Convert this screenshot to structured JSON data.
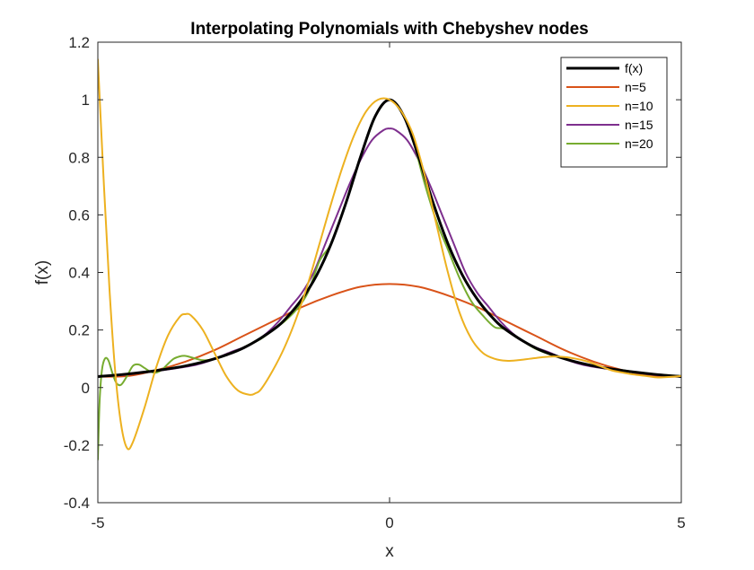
{
  "chart_data": {
    "type": "line",
    "title": "Interpolating Polynomials with Chebyshev nodes",
    "xlabel": "x",
    "ylabel": "f(x)",
    "xlim": [
      -5,
      5
    ],
    "ylim": [
      -0.4,
      1.2
    ],
    "xticks": [
      -5,
      0,
      5
    ],
    "xtick_labels": [
      "-5",
      "0",
      "5"
    ],
    "yticks": [
      -0.4,
      -0.2,
      0,
      0.2,
      0.4,
      0.6,
      0.8,
      1,
      1.2
    ],
    "ytick_labels": [
      "-0.4",
      "-0.2",
      "0",
      "0.2",
      "0.4",
      "0.6",
      "0.8",
      "1",
      "1.2"
    ],
    "grid": false,
    "legend_position": "top-right",
    "series": [
      {
        "name": "f(x)",
        "color": "#000000",
        "line_width": 3,
        "x": [
          -5,
          -4.5,
          -4,
          -3.5,
          -3,
          -2.5,
          -2,
          -1.75,
          -1.5,
          -1.25,
          -1,
          -0.75,
          -0.5,
          -0.25,
          0,
          0.25,
          0.5,
          0.75,
          1,
          1.25,
          1.5,
          1.75,
          2,
          2.5,
          3,
          3.5,
          4,
          4.5,
          5
        ],
        "y": [
          0.038,
          0.047,
          0.059,
          0.075,
          0.1,
          0.138,
          0.2,
          0.246,
          0.308,
          0.39,
          0.5,
          0.64,
          0.8,
          0.941,
          1,
          0.941,
          0.8,
          0.64,
          0.5,
          0.39,
          0.308,
          0.246,
          0.2,
          0.138,
          0.1,
          0.075,
          0.059,
          0.047,
          0.038
        ]
      },
      {
        "name": "n=5",
        "color": "#D95319",
        "line_width": 2,
        "x": [
          -5,
          -4.5,
          -4,
          -3.5,
          -3,
          -2.5,
          -2,
          -1.5,
          -1,
          -0.5,
          0,
          0.5,
          1,
          1.5,
          2,
          2.5,
          3,
          3.5,
          4,
          4.5,
          5
        ],
        "y": [
          0.038,
          0.04,
          0.06,
          0.09,
          0.13,
          0.18,
          0.23,
          0.28,
          0.32,
          0.35,
          0.36,
          0.35,
          0.32,
          0.28,
          0.23,
          0.18,
          0.13,
          0.09,
          0.06,
          0.04,
          0.038
        ]
      },
      {
        "name": "n=10",
        "color": "#EDB120",
        "line_width": 2,
        "x": [
          -5,
          -4.9,
          -4.8,
          -4.7,
          -4.6,
          -4.5,
          -4.4,
          -4.2,
          -4.0,
          -3.8,
          -3.6,
          -3.5,
          -3.4,
          -3.2,
          -3.0,
          -2.8,
          -2.6,
          -2.4,
          -2.3,
          -2.2,
          -2.0,
          -1.8,
          -1.6,
          -1.4,
          -1.2,
          -1.0,
          -0.8,
          -0.6,
          -0.4,
          -0.2,
          0,
          0.2,
          0.4,
          0.6,
          0.8,
          1.0,
          1.2,
          1.4,
          1.6,
          1.8,
          2.0,
          2.2,
          2.4,
          2.6,
          2.8,
          3.0,
          3.2,
          3.4,
          3.6,
          3.8,
          4.0,
          4.2,
          4.4,
          4.6,
          4.8,
          5
        ],
        "y": [
          1.14,
          0.72,
          0.34,
          0.05,
          -0.13,
          -0.21,
          -0.19,
          -0.07,
          0.07,
          0.18,
          0.245,
          0.255,
          0.25,
          0.2,
          0.12,
          0.04,
          -0.01,
          -0.025,
          -0.02,
          -0.005,
          0.06,
          0.14,
          0.24,
          0.36,
          0.5,
          0.64,
          0.77,
          0.88,
          0.96,
          1.0,
          1.0,
          0.96,
          0.88,
          0.74,
          0.57,
          0.4,
          0.26,
          0.17,
          0.12,
          0.1,
          0.093,
          0.095,
          0.1,
          0.105,
          0.108,
          0.106,
          0.1,
          0.09,
          0.075,
          0.06,
          0.052,
          0.045,
          0.04,
          0.035,
          0.037,
          0.04
        ]
      },
      {
        "name": "n=15",
        "color": "#7E2F8E",
        "line_width": 2,
        "x": [
          -5,
          -4.9,
          -4.7,
          -4.5,
          -4.3,
          -4.1,
          -3.9,
          -3.7,
          -3.5,
          -3.3,
          -3.1,
          -2.9,
          -2.7,
          -2.5,
          -2.3,
          -2.1,
          -1.9,
          -1.7,
          -1.5,
          -1.3,
          -1.1,
          -0.9,
          -0.7,
          -0.5,
          -0.3,
          -0.1,
          0,
          0.1,
          0.3,
          0.5,
          0.7,
          0.9,
          1.1,
          1.3,
          1.5,
          1.7,
          1.9,
          2.1,
          2.3,
          2.5,
          2.7,
          2.9,
          3.1,
          3.3,
          3.5,
          3.7,
          3.9,
          4.1,
          4.3,
          4.5,
          4.7,
          4.9,
          5
        ],
        "y": [
          0.04,
          0.04,
          0.042,
          0.045,
          0.05,
          0.055,
          0.06,
          0.066,
          0.072,
          0.08,
          0.092,
          0.108,
          0.125,
          0.14,
          0.16,
          0.19,
          0.23,
          0.28,
          0.33,
          0.4,
          0.5,
          0.6,
          0.7,
          0.79,
          0.86,
          0.895,
          0.9,
          0.895,
          0.86,
          0.79,
          0.7,
          0.6,
          0.5,
          0.4,
          0.33,
          0.28,
          0.23,
          0.19,
          0.16,
          0.14,
          0.125,
          0.108,
          0.092,
          0.08,
          0.072,
          0.066,
          0.06,
          0.055,
          0.05,
          0.045,
          0.042,
          0.04,
          0.04
        ]
      },
      {
        "name": "n=20",
        "color": "#77AC30",
        "line_width": 2,
        "x": [
          -5,
          -4.97,
          -4.93,
          -4.88,
          -4.82,
          -4.75,
          -4.68,
          -4.6,
          -4.5,
          -4.4,
          -4.3,
          -4.2,
          -4.1,
          -4.0,
          -3.9,
          -3.8,
          -3.7,
          -3.6,
          -3.5,
          -3.4,
          -3.2,
          -3.0,
          -2.8,
          -2.6,
          -2.4,
          -2.2,
          -2.0,
          -1.8,
          -1.6,
          -1.4,
          -1.2,
          -1.0,
          -0.8,
          -0.6,
          -0.4,
          -0.2,
          0,
          0.2,
          0.4,
          0.6,
          0.8,
          1.0,
          1.2,
          1.4,
          1.6,
          1.8,
          2.0,
          2.5,
          3.0,
          3.5,
          4.0,
          4.5,
          5
        ],
        "y": [
          -0.25,
          -0.05,
          0.06,
          0.1,
          0.095,
          0.05,
          0.015,
          0.01,
          0.04,
          0.075,
          0.08,
          0.068,
          0.055,
          0.052,
          0.062,
          0.082,
          0.1,
          0.108,
          0.11,
          0.105,
          0.095,
          0.1,
          0.115,
          0.13,
          0.15,
          0.17,
          0.2,
          0.23,
          0.27,
          0.33,
          0.44,
          0.5,
          0.61,
          0.74,
          0.86,
          0.96,
          1.0,
          0.96,
          0.86,
          0.71,
          0.58,
          0.48,
          0.38,
          0.3,
          0.25,
          0.21,
          0.2,
          0.135,
          0.1,
          0.075,
          0.06,
          0.047,
          0.04
        ]
      }
    ]
  }
}
